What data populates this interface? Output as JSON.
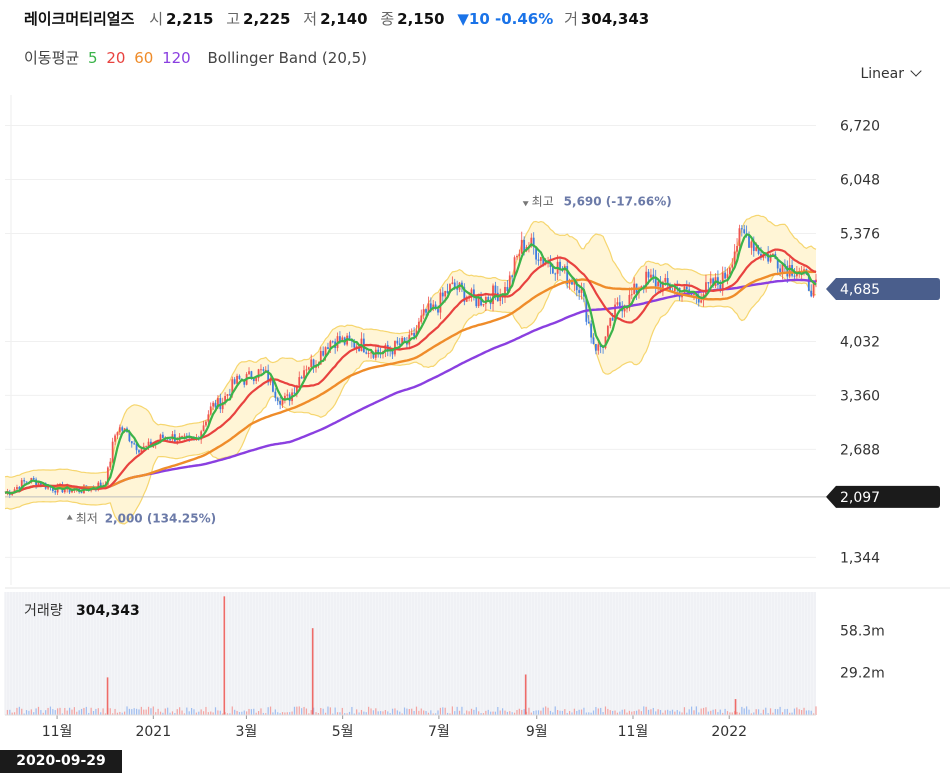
{
  "header": {
    "name": "레이크머티리얼즈",
    "open_label": "시",
    "open": "2,215",
    "high_label": "고",
    "high": "2,225",
    "low_label": "저",
    "low": "2,140",
    "close_label": "종",
    "close": "2,150",
    "change": "▼10 -0.46%",
    "volume_label": "거",
    "volume": "304,343"
  },
  "indicators": {
    "ma_label": "이동평균",
    "ma": [
      {
        "period": "5",
        "color": "#3bb34a"
      },
      {
        "period": "20",
        "color": "#e8423f"
      },
      {
        "period": "60",
        "color": "#ef8c2a"
      },
      {
        "period": "120",
        "color": "#8a3fe0"
      }
    ],
    "bollinger_label": "Bollinger Band (20,5)"
  },
  "scale_selector": "Linear",
  "date_badge": "2020-09-29",
  "chart_data": {
    "type": "candlestick",
    "y_ticks": [
      "6,720",
      "6,048",
      "5,376",
      "4,032",
      "3,360",
      "2,688",
      "1,344"
    ],
    "y_tick_values": [
      6720,
      6048,
      5376,
      4032,
      3360,
      2688,
      1344
    ],
    "ylim": [
      1000,
      7100
    ],
    "x_ticks": [
      "11월",
      "2021",
      "3월",
      "5월",
      "7월",
      "9월",
      "11월",
      "2022"
    ],
    "x_tick_dates": [
      "2020-11-01",
      "2021-01-01",
      "2021-03-01",
      "2021-05-01",
      "2021-07-01",
      "2021-09-01",
      "2021-11-01",
      "2022-01-01"
    ],
    "x_range": [
      "2020-09-29",
      "2022-02-25"
    ],
    "current_price": {
      "label": "4,685",
      "value": 4685,
      "color": "#4a5e8c"
    },
    "crosshair_price": {
      "label": "2,097",
      "value": 2097,
      "color": "#1b1b1b"
    },
    "high_marker": {
      "label": "최고",
      "value_text": "5,690 (-17.66%)",
      "value": 5690,
      "date": "2021-08-25"
    },
    "low_marker": {
      "label": "최저",
      "value_text": "2,000 (134.25%)",
      "value": 2000,
      "date": "2020-11-09"
    },
    "close_series": [
      {
        "date": "2020-09-29",
        "v": 2150
      },
      {
        "date": "2020-10-15",
        "v": 2300
      },
      {
        "date": "2020-11-01",
        "v": 2200
      },
      {
        "date": "2020-11-15",
        "v": 2180
      },
      {
        "date": "2020-11-30",
        "v": 2250
      },
      {
        "date": "2020-12-10",
        "v": 2950
      },
      {
        "date": "2020-12-25",
        "v": 2700
      },
      {
        "date": "2021-01-10",
        "v": 2850
      },
      {
        "date": "2021-01-25",
        "v": 2780
      },
      {
        "date": "2021-02-10",
        "v": 3250
      },
      {
        "date": "2021-02-25",
        "v": 3550
      },
      {
        "date": "2021-03-10",
        "v": 3650
      },
      {
        "date": "2021-03-25",
        "v": 3300
      },
      {
        "date": "2021-04-10",
        "v": 3750
      },
      {
        "date": "2021-04-25",
        "v": 4050
      },
      {
        "date": "2021-05-10",
        "v": 4000
      },
      {
        "date": "2021-05-25",
        "v": 3900
      },
      {
        "date": "2021-06-10",
        "v": 4000
      },
      {
        "date": "2021-06-25",
        "v": 4400
      },
      {
        "date": "2021-07-10",
        "v": 4700
      },
      {
        "date": "2021-07-25",
        "v": 4550
      },
      {
        "date": "2021-08-10",
        "v": 4650
      },
      {
        "date": "2021-08-25",
        "v": 5250
      },
      {
        "date": "2021-09-10",
        "v": 5000
      },
      {
        "date": "2021-09-25",
        "v": 4800
      },
      {
        "date": "2021-10-10",
        "v": 3950
      },
      {
        "date": "2021-10-25",
        "v": 4500
      },
      {
        "date": "2021-11-10",
        "v": 4800
      },
      {
        "date": "2021-11-25",
        "v": 4700
      },
      {
        "date": "2021-12-10",
        "v": 4600
      },
      {
        "date": "2021-12-25",
        "v": 4750
      },
      {
        "date": "2022-01-10",
        "v": 5350
      },
      {
        "date": "2022-01-25",
        "v": 5100
      },
      {
        "date": "2022-02-10",
        "v": 4950
      },
      {
        "date": "2022-02-25",
        "v": 4685
      }
    ],
    "volume": {
      "label": "거래량",
      "value": "304,343",
      "y_ticks": [
        "58.3m",
        "29.2m"
      ],
      "y_tick_values": [
        58.3,
        29.2
      ],
      "ylim": [
        0,
        85
      ],
      "unit": "m",
      "spikes": [
        {
          "date": "2020-12-03",
          "v": 26
        },
        {
          "date": "2021-02-15",
          "v": 82
        },
        {
          "date": "2021-04-12",
          "v": 60
        },
        {
          "date": "2021-08-25",
          "v": 28
        },
        {
          "date": "2022-01-05",
          "v": 11
        }
      ]
    }
  }
}
